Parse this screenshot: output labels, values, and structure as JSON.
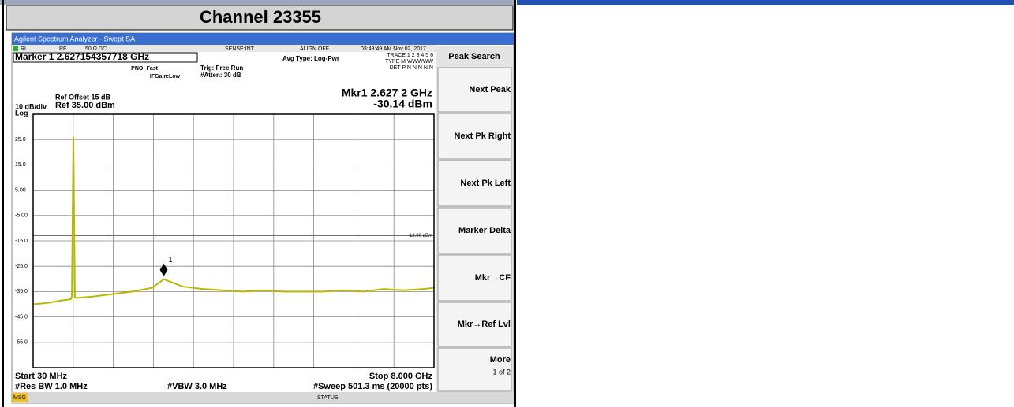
{
  "header": {
    "title": "Channel 23355"
  },
  "window_title": "Agilent Spectrum Analyzer - Swept SA",
  "status_row": {
    "rl": "RL",
    "rf": "RF",
    "impedance": "50 Ω  DC",
    "sense": "SENSE:INT",
    "align": "ALIGN OFF",
    "datetime": "03:43:49 AM Nov 02, 2017"
  },
  "marker_readout": "Marker 1 2.627154357718 GHz",
  "settings": {
    "pno": "PNO: Fast",
    "ifgain": "IFGain:Low",
    "trig": "Trig: Free Run",
    "atten": "#Atten: 30 dB",
    "avg": "Avg Type: Log-Pwr",
    "trace": "TRACE 1 2 3 4 5 6",
    "type": "TYPE M WWWWW",
    "det": "DET P N N N N N",
    "ref_offset": "Ref Offset 15 dB",
    "scale": "10 dB/div",
    "ref": "Ref 35.00 dBm",
    "log": "Log",
    "mkr_freq": "Mkr1 2.627 2 GHz",
    "mkr_level": "-30.14 dBm"
  },
  "footer": {
    "start": "Start 30 MHz",
    "stop": "Stop 8.000 GHz",
    "rbw": "#Res BW 1.0 MHz",
    "vbw": "#VBW 3.0 MHz",
    "sweep": "#Sweep  501.3 ms (20000 pts)",
    "msg": "MSG",
    "status": "STATUS"
  },
  "softkeys": {
    "title": "Peak Search",
    "keys": [
      "Next Peak",
      "Next Pk Right",
      "Next Pk Left",
      "Marker Delta",
      "Mkr→CF",
      "Mkr→Ref Lvl",
      "More"
    ],
    "page": "1 of 2"
  },
  "chart_data": {
    "type": "line",
    "x": [
      30,
      300,
      600,
      780,
      800,
      830,
      860,
      880,
      1200,
      1600,
      2000,
      2400,
      2627.2,
      3000,
      3400,
      3800,
      4200,
      4600,
      5000,
      5400,
      5800,
      6200,
      6600,
      7000,
      7400,
      7800,
      8000
    ],
    "values": [
      -40,
      -39.5,
      -38.5,
      -38,
      -37,
      26,
      -37,
      -37.5,
      -37,
      -36,
      -35,
      -33.5,
      -30.14,
      -33,
      -34,
      -34.5,
      -35,
      -34.5,
      -35,
      -35,
      -35,
      -34.5,
      -35,
      -34,
      -34.5,
      -34,
      -33.5
    ],
    "color": "#b8b800",
    "xlim": [
      30,
      8000
    ],
    "ylim": [
      -65,
      35
    ],
    "xticks": [
      30,
      827,
      1624,
      2421,
      3218,
      4015,
      4812,
      5609,
      6406,
      7203,
      8000
    ],
    "yticks": [
      {
        "value": 25,
        "label": "25.0"
      },
      {
        "value": 15,
        "label": "15.0"
      },
      {
        "value": 5,
        "label": "5.00"
      },
      {
        "value": -5,
        "label": "-5.00"
      },
      {
        "value": -15,
        "label": "-15.0"
      },
      {
        "value": -25,
        "label": "-25.0"
      },
      {
        "value": -35,
        "label": "-35.0"
      },
      {
        "value": -45,
        "label": "-45.0"
      },
      {
        "value": -55,
        "label": "-55.0"
      }
    ],
    "limit_line": {
      "value": -13,
      "label": "-13.00 dBm"
    },
    "marker": {
      "x": 2627.2,
      "y": -30.14,
      "label": "1"
    },
    "grid": true
  }
}
